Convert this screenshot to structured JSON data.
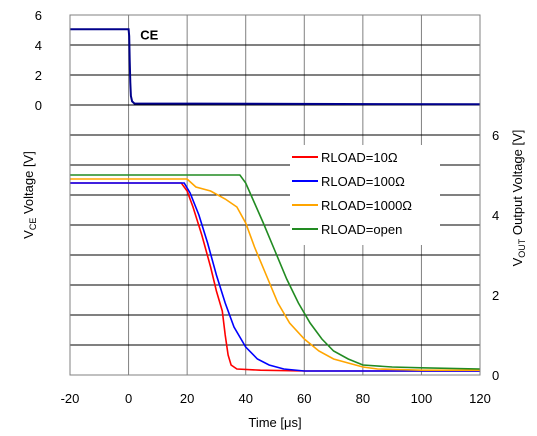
{
  "chart_data": {
    "type": "line",
    "x_axis": {
      "label": "Time [μs]",
      "range": [
        -20,
        120
      ],
      "ticks": [
        -20,
        0,
        20,
        40,
        60,
        80,
        100,
        120
      ]
    },
    "y_axis_left": {
      "label": "VCE Voltage [V]",
      "range": [
        0,
        6
      ],
      "ticks": [
        0,
        2,
        4,
        6
      ]
    },
    "y_axis_right": {
      "label": "VOUT Output Voltage [V]",
      "range": [
        0,
        6
      ],
      "ticks": [
        0,
        2,
        4,
        6
      ]
    },
    "annotation": "CE",
    "grid": true,
    "legend_position": "right-middle",
    "ce_signal": {
      "color": "#00008b",
      "points": [
        [
          -20,
          5.05
        ],
        [
          0,
          5.05
        ],
        [
          0.2,
          4.6
        ],
        [
          0.4,
          3.0
        ],
        [
          0.6,
          1.5
        ],
        [
          0.8,
          0.6
        ],
        [
          1.2,
          0.25
        ],
        [
          2,
          0.1
        ],
        [
          120,
          0.05
        ]
      ]
    },
    "series": [
      {
        "name": "RLOAD=10Ω",
        "color": "#ff0000",
        "points": [
          [
            -20,
            4.8
          ],
          [
            18,
            4.8
          ],
          [
            20,
            4.6
          ],
          [
            22,
            4.2
          ],
          [
            25,
            3.5
          ],
          [
            28,
            2.7
          ],
          [
            30,
            2.1
          ],
          [
            32,
            1.6
          ],
          [
            33,
            1.0
          ],
          [
            34,
            0.5
          ],
          [
            35,
            0.25
          ],
          [
            37,
            0.15
          ],
          [
            45,
            0.12
          ],
          [
            60,
            0.1
          ],
          [
            80,
            0.1
          ],
          [
            120,
            0.1
          ]
        ]
      },
      {
        "name": "RLOAD=100Ω",
        "color": "#0000ff",
        "points": [
          [
            -20,
            4.8
          ],
          [
            19,
            4.8
          ],
          [
            21,
            4.55
          ],
          [
            24,
            4.0
          ],
          [
            27,
            3.3
          ],
          [
            30,
            2.5
          ],
          [
            33,
            1.8
          ],
          [
            36,
            1.2
          ],
          [
            40,
            0.7
          ],
          [
            44,
            0.4
          ],
          [
            48,
            0.25
          ],
          [
            53,
            0.15
          ],
          [
            60,
            0.1
          ],
          [
            120,
            0.1
          ]
        ]
      },
      {
        "name": "RLOAD=1000Ω",
        "color": "#ffa500",
        "points": [
          [
            -20,
            4.9
          ],
          [
            20,
            4.9
          ],
          [
            23,
            4.7
          ],
          [
            28,
            4.6
          ],
          [
            33,
            4.4
          ],
          [
            37,
            4.2
          ],
          [
            40,
            3.8
          ],
          [
            43,
            3.2
          ],
          [
            47,
            2.5
          ],
          [
            51,
            1.8
          ],
          [
            55,
            1.3
          ],
          [
            60,
            0.9
          ],
          [
            65,
            0.6
          ],
          [
            70,
            0.4
          ],
          [
            75,
            0.3
          ],
          [
            80,
            0.2
          ],
          [
            85,
            0.15
          ],
          [
            100,
            0.12
          ],
          [
            120,
            0.12
          ]
        ]
      },
      {
        "name": "RLOAD=open",
        "color": "#228b22",
        "points": [
          [
            -20,
            5.0
          ],
          [
            38,
            5.0
          ],
          [
            40,
            4.8
          ],
          [
            43,
            4.3
          ],
          [
            46,
            3.8
          ],
          [
            50,
            3.1
          ],
          [
            54,
            2.4
          ],
          [
            58,
            1.8
          ],
          [
            62,
            1.3
          ],
          [
            66,
            0.9
          ],
          [
            70,
            0.6
          ],
          [
            75,
            0.4
          ],
          [
            80,
            0.25
          ],
          [
            90,
            0.2
          ],
          [
            100,
            0.18
          ],
          [
            120,
            0.15
          ]
        ]
      }
    ]
  }
}
